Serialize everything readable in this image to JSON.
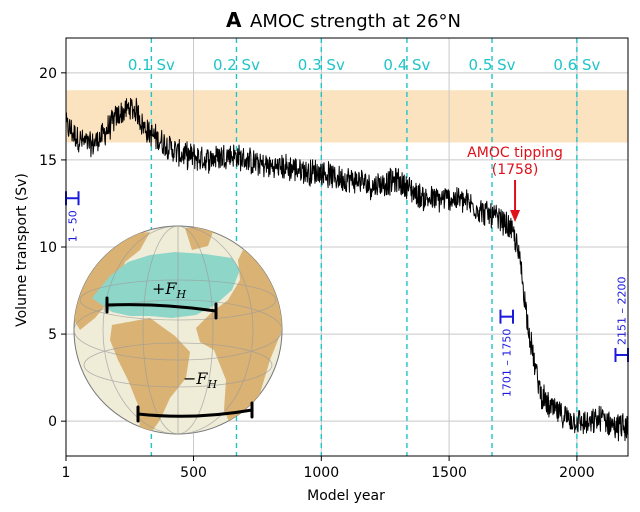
{
  "chart_data": {
    "type": "line",
    "panel_label": "A",
    "title": "AMOC strength at 26°N",
    "xlabel": "Model year",
    "ylabel": "Volume transport (Sv)",
    "xlim": [
      1,
      2200
    ],
    "ylim": [
      -2,
      22
    ],
    "x_ticks": [
      {
        "value": 1,
        "label": "1"
      },
      {
        "value": 500,
        "label": "500"
      },
      {
        "value": 1000,
        "label": "1000"
      },
      {
        "value": 1500,
        "label": "1500"
      },
      {
        "value": 2000,
        "label": "2000"
      }
    ],
    "y_ticks": [
      {
        "value": 0,
        "label": "0"
      },
      {
        "value": 5,
        "label": "5"
      },
      {
        "value": 10,
        "label": "10"
      },
      {
        "value": 15,
        "label": "15"
      },
      {
        "value": 20,
        "label": "20"
      }
    ],
    "observed_band": {
      "y0": 16,
      "y1": 19
    },
    "series": [
      {
        "name": "AMOC strength",
        "color": "#000000",
        "x": [
          1,
          50,
          100,
          150,
          200,
          250,
          280,
          300,
          330,
          360,
          400,
          450,
          500,
          550,
          600,
          650,
          700,
          750,
          800,
          850,
          900,
          950,
          1000,
          1050,
          1100,
          1150,
          1200,
          1250,
          1300,
          1350,
          1400,
          1450,
          1500,
          1550,
          1600,
          1650,
          1700,
          1730,
          1758,
          1780,
          1800,
          1820,
          1840,
          1860,
          1880,
          1900,
          1950,
          2000,
          2050,
          2100,
          2150,
          2200
        ],
        "values": [
          17.0,
          16.2,
          15.8,
          16.5,
          17.5,
          18.0,
          17.8,
          17.0,
          16.5,
          16.2,
          15.8,
          15.3,
          15.2,
          15.0,
          15.2,
          15.3,
          15.0,
          14.8,
          14.6,
          14.6,
          14.5,
          14.3,
          14.3,
          14.0,
          13.9,
          13.8,
          13.5,
          13.7,
          13.8,
          13.3,
          12.8,
          12.7,
          12.8,
          12.7,
          12.3,
          11.9,
          11.5,
          11.2,
          10.5,
          9.0,
          6.5,
          4.5,
          2.8,
          1.6,
          1.0,
          0.7,
          0.3,
          0.0,
          -0.2,
          0.2,
          -0.3,
          -0.3
        ]
      }
    ],
    "vlines": [
      {
        "x": 335,
        "label": "0.1 Sv"
      },
      {
        "x": 668,
        "label": "0.2 Sv"
      },
      {
        "x": 1000,
        "label": "0.3 Sv"
      },
      {
        "x": 1335,
        "label": "0.4 Sv"
      },
      {
        "x": 1668,
        "label": "0.5 Sv"
      },
      {
        "x": 2000,
        "label": "0.6 Sv"
      }
    ],
    "annotation": {
      "line1": "AMOC tipping",
      "line2": "(1758)",
      "x": 1758
    },
    "ranges": [
      {
        "label": "1 - 50",
        "x0": 1,
        "x1": 50,
        "y": 12.8
      },
      {
        "label": "1701 – 1750",
        "x0": 1701,
        "x1": 1750,
        "y": 6.0
      },
      {
        "label": "2151 – 2200",
        "x0": 2151,
        "x1": 2200,
        "y": 3.8
      }
    ],
    "inset": {
      "north_label": "+F",
      "south_label": "−F",
      "subscript": "H"
    }
  }
}
